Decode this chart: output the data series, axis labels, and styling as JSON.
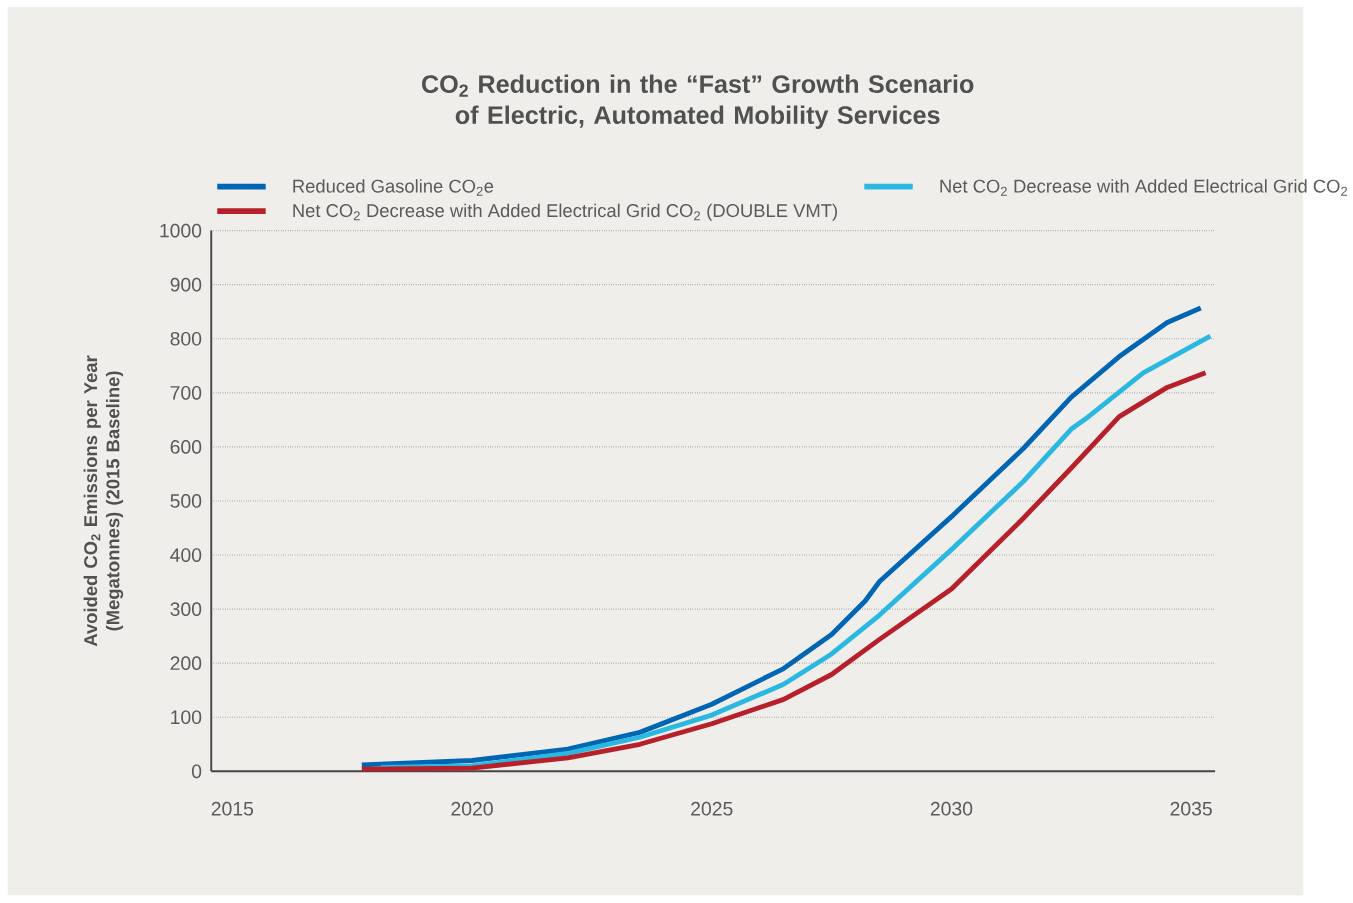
{
  "chart_data": {
    "type": "line",
    "title": "CO$_{2}$ Reduction in the “Fast” Growth Scenario of Electric, Automated Mobility Services",
    "ylabel": "Avoided CO$_{2}$ Emissions  per Year (Megatonnes) (2015 Baseline)",
    "xlim": [
      2014.56,
      2035.5
    ],
    "xticks": [
      2015,
      2020,
      2025,
      2030,
      2035
    ],
    "ylim": [
      0,
      1000
    ],
    "yticks": [
      0,
      100,
      200,
      300,
      400,
      500,
      600,
      700,
      800,
      900,
      1000
    ],
    "grid": "y",
    "legend": "top",
    "marker": "none",
    "line_style": "solid",
    "series": [
      {
        "name": "Reduced Gasoline CO$_{2}$e",
        "color": "#0066b3",
        "x": [
          2017.7,
          2020,
          2022,
          2023.5,
          2025,
          2026.5,
          2027.5,
          2028.2,
          2028.5,
          2030,
          2031.5,
          2032.5,
          2033.5,
          2034.5,
          2035.2
        ],
        "values": [
          12,
          20,
          41,
          72,
          124,
          190,
          253,
          315,
          351,
          471,
          597,
          692,
          767,
          830,
          857
        ]
      },
      {
        "name": "Net CO$_{2}$ Decrease with Added Electrical Grid CO$_{2}$",
        "color": "#2bb8e0",
        "x": [
          2018.1,
          2020,
          2022,
          2023.5,
          2025,
          2026.5,
          2027.5,
          2028.5,
          2030,
          2031.5,
          2032.5,
          2032.8,
          2034,
          2035.4
        ],
        "values": [
          7,
          10,
          33,
          63,
          104,
          161,
          217,
          289,
          410,
          536,
          633,
          652,
          737,
          805
        ]
      },
      {
        "name": "Net CO$_{2}$ Decrease with Added Electrical Grid CO$_{2}$ (DOUBLE VMT)",
        "color": "#b7202a",
        "x": [
          2017.7,
          2020,
          2022,
          2023.5,
          2025,
          2026.5,
          2027.5,
          2028.5,
          2030,
          2031.5,
          2032.5,
          2033.5,
          2034.5,
          2035.3
        ],
        "values": [
          4,
          6,
          25,
          50,
          88,
          133,
          179,
          244,
          337,
          468,
          561,
          656,
          710,
          737
        ]
      }
    ]
  }
}
